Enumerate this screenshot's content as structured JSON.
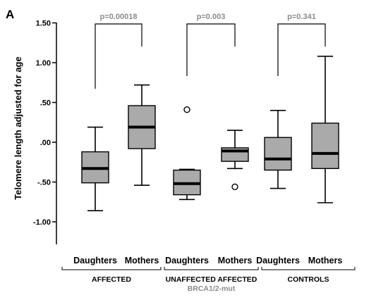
{
  "panel_label": "A",
  "chart_data": {
    "type": "boxplot",
    "ylabel": "Telomere length adjusted for age",
    "ylim": [
      -1.4,
      1.5
    ],
    "yticks": [
      1.5,
      1.0,
      0.5,
      0.0,
      -0.5,
      -1.0
    ],
    "ytick_labels": [
      "1.50",
      "1.00",
      ".50",
      ".00",
      "-.50",
      "-1.00"
    ],
    "groups": [
      {
        "label": "AFFECTED",
        "sublabel": "",
        "p_value": "p=0.00018"
      },
      {
        "label": "UNAFFECTED  AFFECTED",
        "sublabel": "BRCA1/2-mut",
        "p_value": "p=0.003"
      },
      {
        "label": "CONTROLS",
        "sublabel": "",
        "p_value": "p=0.341"
      }
    ],
    "boxes": [
      {
        "label": "Daughters",
        "group": 0,
        "whisker_low": -0.86,
        "q1": -0.51,
        "median": -0.33,
        "q3": -0.12,
        "whisker_high": 0.19,
        "outliers": []
      },
      {
        "label": "Mothers",
        "group": 0,
        "whisker_low": -0.54,
        "q1": -0.08,
        "median": 0.19,
        "q3": 0.46,
        "whisker_high": 0.72,
        "outliers": []
      },
      {
        "label": "Daughters",
        "group": 1,
        "whisker_low": -0.72,
        "q1": -0.66,
        "median": -0.52,
        "q3": -0.35,
        "whisker_high": -0.34,
        "outliers": [
          0.41
        ]
      },
      {
        "label": "Mothers",
        "group": 1,
        "whisker_low": -0.33,
        "q1": -0.24,
        "median": -0.11,
        "q3": -0.07,
        "whisker_high": 0.15,
        "outliers": [
          -0.56
        ]
      },
      {
        "label": "Daughters",
        "group": 2,
        "whisker_low": -0.58,
        "q1": -0.35,
        "median": -0.21,
        "q3": 0.06,
        "whisker_high": 0.4,
        "outliers": []
      },
      {
        "label": "Mothers",
        "group": 2,
        "whisker_low": -0.76,
        "q1": -0.33,
        "median": -0.14,
        "q3": 0.24,
        "whisker_high": 1.08,
        "outliers": []
      }
    ],
    "colors": {
      "box_fill": "#aaaaaa",
      "line": "#000000",
      "pvalue_text": "#8c8c8c",
      "sublabel_text": "#8c8c8c"
    }
  }
}
